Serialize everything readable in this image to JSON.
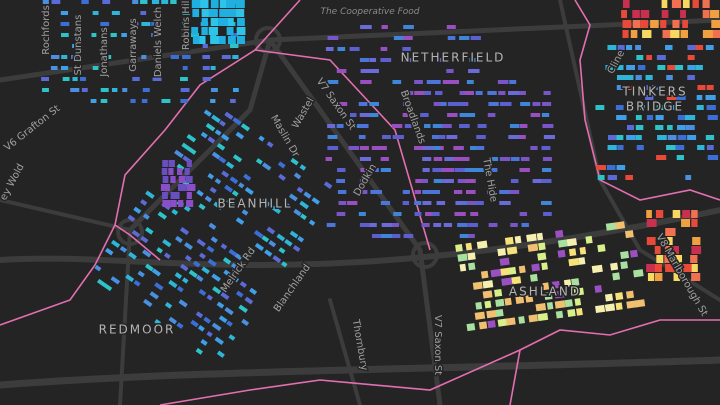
{
  "map": {
    "poi": "The Cooperative Food",
    "places": [
      "NETHERFIELD",
      "TINKERS",
      "BRIDGE",
      "BEANHILL",
      "REDMOOR",
      "ASHLAND"
    ],
    "streets": [
      "V7 Saxon St",
      "V6 Grafton St",
      "Broadlands",
      "Wastel",
      "Maslin Dr",
      "Dodkin",
      "Melrick Rd",
      "Blanchland",
      "Thornbury",
      "V7 Saxon St",
      "V8 Marlborough St",
      "The Hide",
      "Cline",
      "ey Wold",
      "Rochfords",
      "St Dunstans",
      "Jonathans",
      "Garraways",
      "Daniels Welch",
      "Robins Hill"
    ]
  }
}
